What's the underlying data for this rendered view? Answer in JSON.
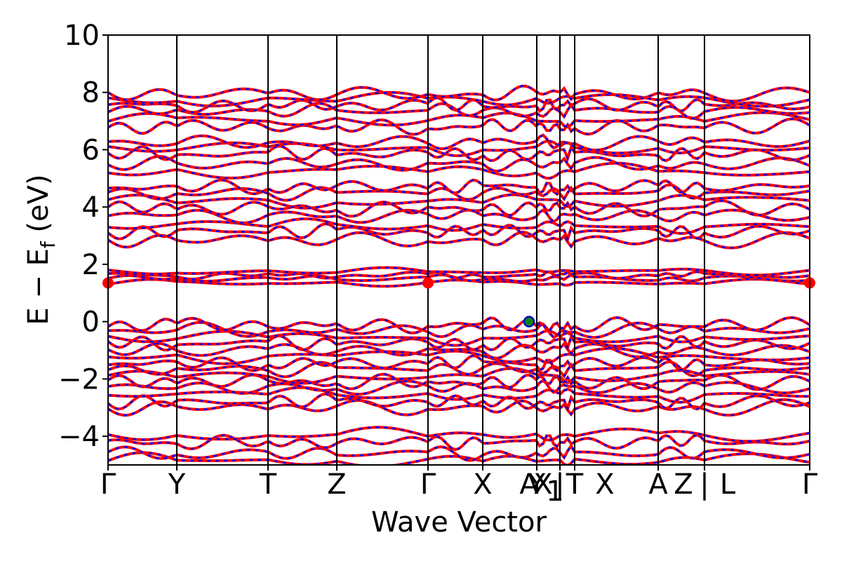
{
  "chart_data": {
    "type": "line",
    "title": "",
    "xlabel": "Wave Vector",
    "ylabel_main": "E − E",
    "ylabel_sub": "f",
    "ylabel_unit": " (eV)",
    "ylim": [
      -5,
      10
    ],
    "yticks": [
      -4,
      -2,
      0,
      2,
      4,
      6,
      8,
      10
    ],
    "ytick_labels": [
      "−4",
      "−2",
      "0",
      "2",
      "4",
      "6",
      "8",
      "10"
    ],
    "xlim": [
      0,
      10
    ],
    "kpath_positions": [
      0,
      0.98,
      2.28,
      3.26,
      4.56,
      5.34,
      6.11,
      6.44,
      6.65,
      7.84,
      8.5,
      10
    ],
    "kpath_labels": [
      {
        "text": "Γ",
        "x": 0
      },
      {
        "text": "Y",
        "x": 0.98
      },
      {
        "text": "T",
        "x": 2.28
      },
      {
        "text": "Z",
        "x": 3.26
      },
      {
        "text": "Γ",
        "x": 4.56
      },
      {
        "text": "X",
        "x": 5.34
      },
      {
        "text": "A",
        "x": 6.0
      },
      {
        "text": "Y",
        "x": 6.11
      },
      {
        "text": "X",
        "x": 6.2
      },
      {
        "text": "1",
        "x": 6.37,
        "sub": true
      },
      {
        "text": "|",
        "x": 6.44
      },
      {
        "text": "T",
        "x": 6.65
      },
      {
        "text": "X",
        "x": 7.08
      },
      {
        "text": "A",
        "x": 7.84
      },
      {
        "text": "Z",
        "x": 8.2
      },
      {
        "text": "|",
        "x": 8.5
      },
      {
        "text": "L",
        "x": 8.83
      },
      {
        "text": "Γ",
        "x": 10
      }
    ],
    "band_energies_at_gamma": [
      -4.85,
      -4.6,
      -4.2,
      -3.95,
      -3.0,
      -2.8,
      -2.55,
      -2.3,
      -2.1,
      -1.9,
      -1.65,
      -1.45,
      -1.2,
      -1.0,
      -0.75,
      -0.55,
      -0.3,
      -0.12,
      1.35,
      1.5,
      1.62,
      1.75,
      2.85,
      3.15,
      3.35,
      3.7,
      3.95,
      4.2,
      4.5,
      4.7,
      5.25,
      5.5,
      5.85,
      6.05,
      6.25,
      6.8,
      7.05,
      7.35,
      7.55,
      7.75,
      7.95
    ],
    "series": [
      {
        "values": "bands",
        "style": "solid"
      },
      {
        "values": "bands",
        "style": "dashed"
      }
    ],
    "colors": {
      "spin_up": "#ff0000",
      "spin_down": "#0000ff",
      "cbm_marker": "#ff0000",
      "vbm_marker": "#0a8a0a",
      "vbm_edge": "#0000cc"
    },
    "cbm_points": [
      {
        "x": 0,
        "y": 1.35
      },
      {
        "x": 4.56,
        "y": 1.35
      },
      {
        "x": 10,
        "y": 1.35
      }
    ],
    "vbm_point": {
      "x": 6.0,
      "y": 0.0
    },
    "grid": false
  }
}
